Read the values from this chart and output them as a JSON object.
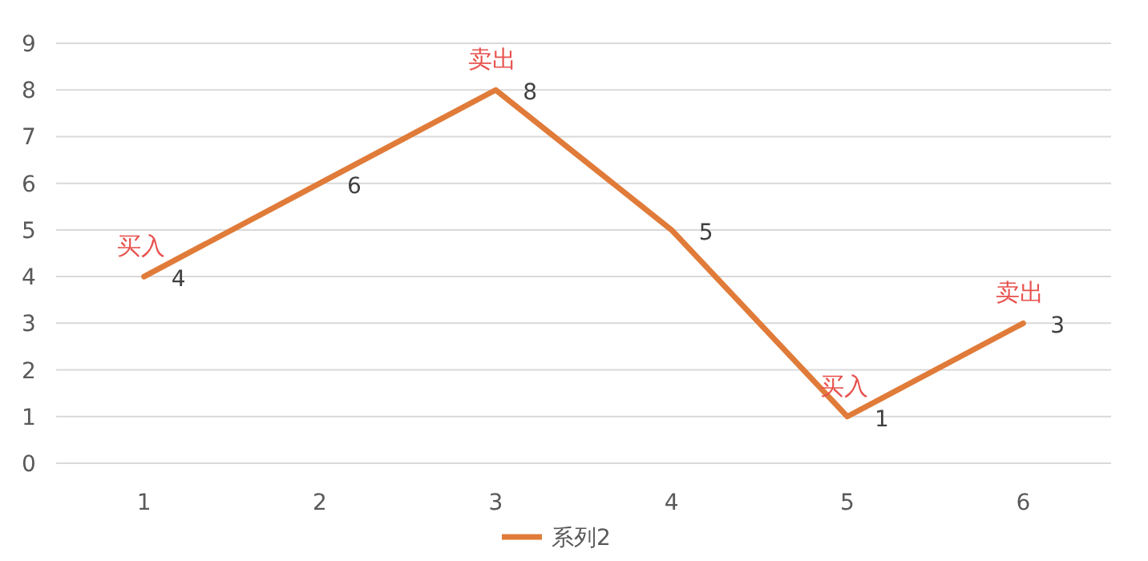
{
  "chart_data": {
    "type": "line",
    "categories": [
      "1",
      "2",
      "3",
      "4",
      "5",
      "6"
    ],
    "series": [
      {
        "name": "系列2",
        "color": "#e07b39",
        "values": [
          4,
          6,
          8,
          5,
          1,
          3
        ]
      }
    ],
    "ylim": [
      0,
      9
    ],
    "yticks": [
      0,
      1,
      2,
      3,
      4,
      5,
      6,
      7,
      8,
      9
    ],
    "grid": "y",
    "legend": "bottom",
    "data_labels": true,
    "annotations": [
      {
        "text": "买入",
        "x": "1",
        "y": 4
      },
      {
        "text": "卖出",
        "x": "3",
        "y": 8
      },
      {
        "text": "买入",
        "x": "5",
        "y": 1
      },
      {
        "text": "卖出",
        "x": "6",
        "y": 3
      }
    ]
  }
}
